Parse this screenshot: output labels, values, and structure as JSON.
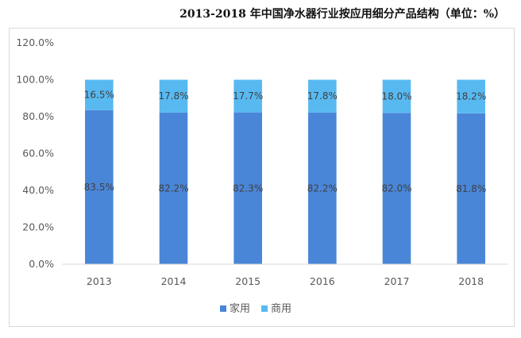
{
  "chart_data": {
    "type": "bar",
    "stacked": true,
    "title": "2013-2018 年中国净水器行业按应用细分产品结构（单位：%）",
    "categories": [
      "2013",
      "2014",
      "2015",
      "2016",
      "2017",
      "2018"
    ],
    "series": [
      {
        "name": "家用",
        "values": [
          83.5,
          82.2,
          82.3,
          82.2,
          82.0,
          81.8
        ],
        "labels": [
          "83.5%",
          "82.2%",
          "82.3%",
          "82.2%",
          "82.0%",
          "81.8%"
        ],
        "color": "#4a86d8"
      },
      {
        "name": "商用",
        "values": [
          16.5,
          17.8,
          17.7,
          17.8,
          18.0,
          18.2
        ],
        "labels": [
          "16.5%",
          "17.8%",
          "17.7%",
          "17.8%",
          "18.0%",
          "18.2%"
        ],
        "color": "#58b9f1"
      }
    ],
    "ylim": [
      0,
      120
    ],
    "yticks": [
      "0.0%",
      "20.0%",
      "40.0%",
      "60.0%",
      "80.0%",
      "100.0%",
      "120.0%"
    ],
    "grid": false,
    "legend_position": "bottom"
  }
}
